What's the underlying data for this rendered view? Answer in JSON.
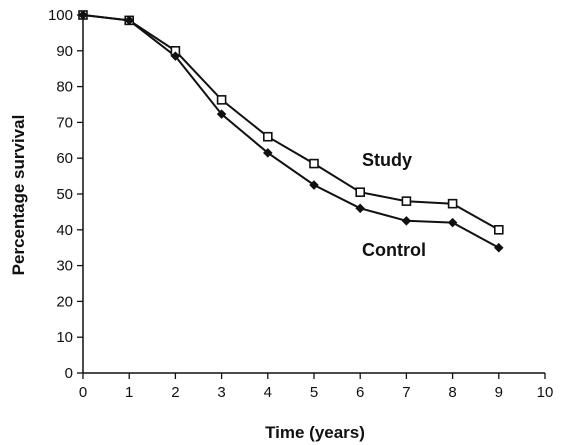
{
  "chart_data": {
    "type": "line",
    "xlabel": "Time (years)",
    "ylabel": "Percentage survival",
    "xlim": [
      0,
      10
    ],
    "ylim": [
      0,
      100
    ],
    "xticks": [
      "0",
      "1",
      "2",
      "3",
      "4",
      "5",
      "6",
      "7",
      "8",
      "9",
      "10"
    ],
    "yticks": [
      "0",
      "10",
      "20",
      "30",
      "40",
      "50",
      "60",
      "70",
      "80",
      "90",
      "100"
    ],
    "grid": false,
    "legend": "inline labels",
    "series": [
      {
        "name": "Study",
        "marker": "open-square",
        "x": [
          0,
          1,
          2,
          3,
          4,
          5,
          6,
          7,
          8,
          9
        ],
        "y": [
          100,
          98.5,
          90,
          76.3,
          66,
          58.5,
          50.5,
          48,
          47.3,
          40
        ]
      },
      {
        "name": "Control",
        "marker": "filled-diamond",
        "x": [
          0,
          1,
          2,
          3,
          4,
          5,
          6,
          7,
          8,
          9
        ],
        "y": [
          100,
          98.5,
          88.5,
          72.3,
          61.5,
          52.5,
          46,
          42.5,
          42,
          35
        ]
      }
    ],
    "line_color": "#111111"
  }
}
